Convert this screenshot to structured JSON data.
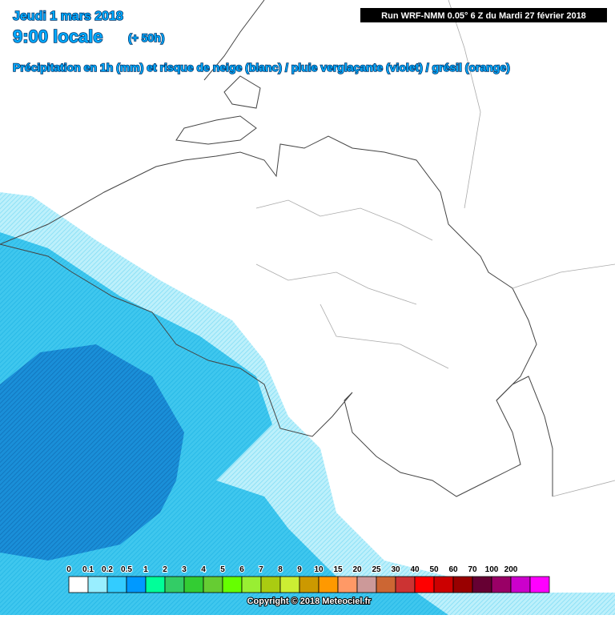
{
  "header": {
    "date": "Jeudi 1 mars 2018",
    "time": "9:00 locale",
    "lead": "(+ 50h)",
    "subtitle": "Précipitation en 1h (mm) et risque de neige (blanc) / pluie verglaçante (violet) / grésil (orange)",
    "run": "Run WRF-NMM 0.05° 6 Z du Mardi 27 février 2018"
  },
  "legend": {
    "labels": [
      "0",
      "0.1",
      "0.2",
      "0.5",
      "1",
      "2",
      "3",
      "4",
      "5",
      "6",
      "7",
      "8",
      "9",
      "10",
      "15",
      "20",
      "25",
      "30",
      "40",
      "50",
      "60",
      "70",
      "100",
      "200"
    ],
    "colors": [
      "#ffffff",
      "#99eeff",
      "#33ccff",
      "#0099ff",
      "#00ff99",
      "#33cc66",
      "#33cc33",
      "#66cc33",
      "#66ff00",
      "#99ee33",
      "#aacc11",
      "#ccee33",
      "#cc9900",
      "#ff9900",
      "#ff9966",
      "#cc9999",
      "#cc6633",
      "#cc3333",
      "#ff0000",
      "#cc0000",
      "#990000",
      "#660033",
      "#990066",
      "#cc00cc",
      "#ff00ff"
    ]
  },
  "footer": {
    "copyright": "Copyright © 2018 Meteociel.fr"
  }
}
